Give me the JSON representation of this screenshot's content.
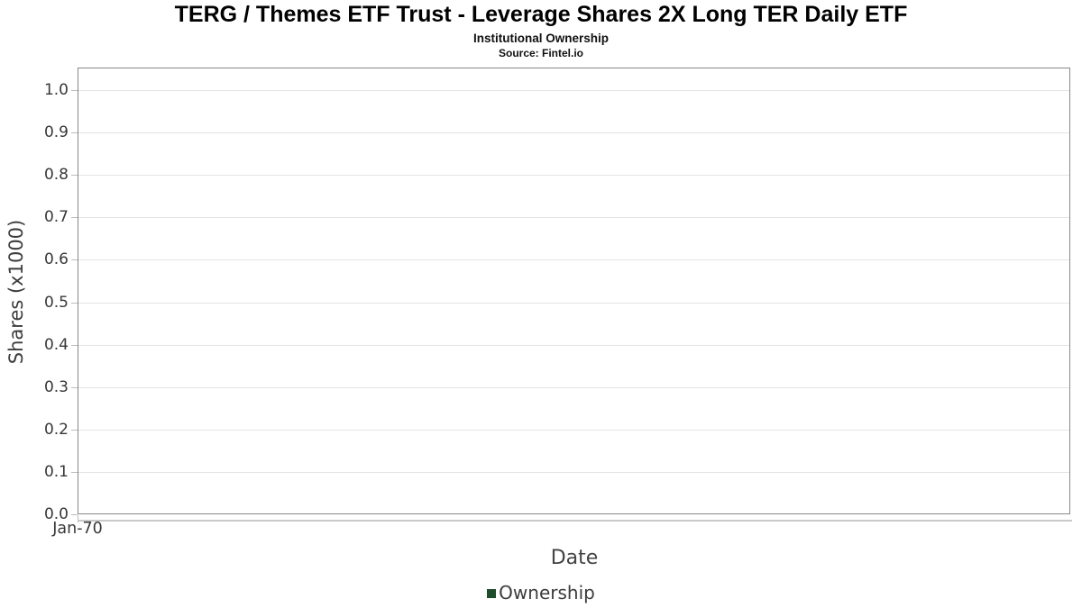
{
  "chart_data": {
    "type": "line",
    "title": "TERG / Themes ETF Trust - Leverage Shares 2X Long TER Daily ETF",
    "subtitle": "Institutional Ownership",
    "source": "Source: Fintel.io",
    "xlabel": "Date",
    "ylabel": "Shares (x1000)",
    "x_ticks": [
      "Jan-70"
    ],
    "y_ticks": [
      {
        "label": "0.0",
        "value": 0.0
      },
      {
        "label": "0.1",
        "value": 0.1
      },
      {
        "label": "0.2",
        "value": 0.2
      },
      {
        "label": "0.3",
        "value": 0.3
      },
      {
        "label": "0.4",
        "value": 0.4
      },
      {
        "label": "0.5",
        "value": 0.5
      },
      {
        "label": "0.6",
        "value": 0.6
      },
      {
        "label": "0.7",
        "value": 0.7
      },
      {
        "label": "0.8",
        "value": 0.8
      },
      {
        "label": "0.9",
        "value": 0.9
      },
      {
        "label": "1.0",
        "value": 1.0
      }
    ],
    "ylim": [
      0,
      1.053
    ],
    "grid": "horizontal",
    "legend": {
      "position": "bottom-center",
      "entries": [
        {
          "name": "Ownership",
          "marker": "square",
          "color": "#1d4d2b"
        }
      ]
    },
    "series": [
      {
        "name": "Ownership",
        "x": [],
        "values": []
      }
    ]
  },
  "colors": {
    "background": "#ffffff",
    "plot_border": "#878787",
    "gridline": "#e4e4e4",
    "tick_mark": "#bdbdbd",
    "axis_baseline": "#c9c9c9",
    "title_text": "#000000",
    "axis_text": "#3a3a3a",
    "legend_green": "#1d4d2b"
  }
}
